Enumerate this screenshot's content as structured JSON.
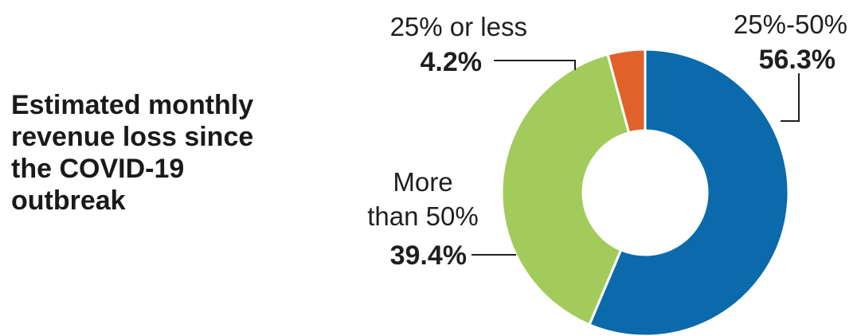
{
  "chart_data": {
    "type": "pie",
    "variant": "donut",
    "title": "Estimated monthly revenue loss since the COVID-19 outbreak",
    "title_lines": [
      "Estimated monthly",
      "revenue loss since",
      "the COVID-19",
      "outbreak"
    ],
    "slices": [
      {
        "category": "25%-50%",
        "value": 56.3,
        "value_label": "56.3%",
        "color": "#0a6aab"
      },
      {
        "category": "More than 50%",
        "category_lines": [
          "More",
          "than 50%"
        ],
        "value": 39.4,
        "value_label": "39.4%",
        "color": "#a2cb5c"
      },
      {
        "category": "25% or less",
        "value": 4.2,
        "value_label": "4.2%",
        "color": "#e0622a"
      }
    ],
    "slice_order": "clockwise from top",
    "legend": "none (direct labels)"
  }
}
